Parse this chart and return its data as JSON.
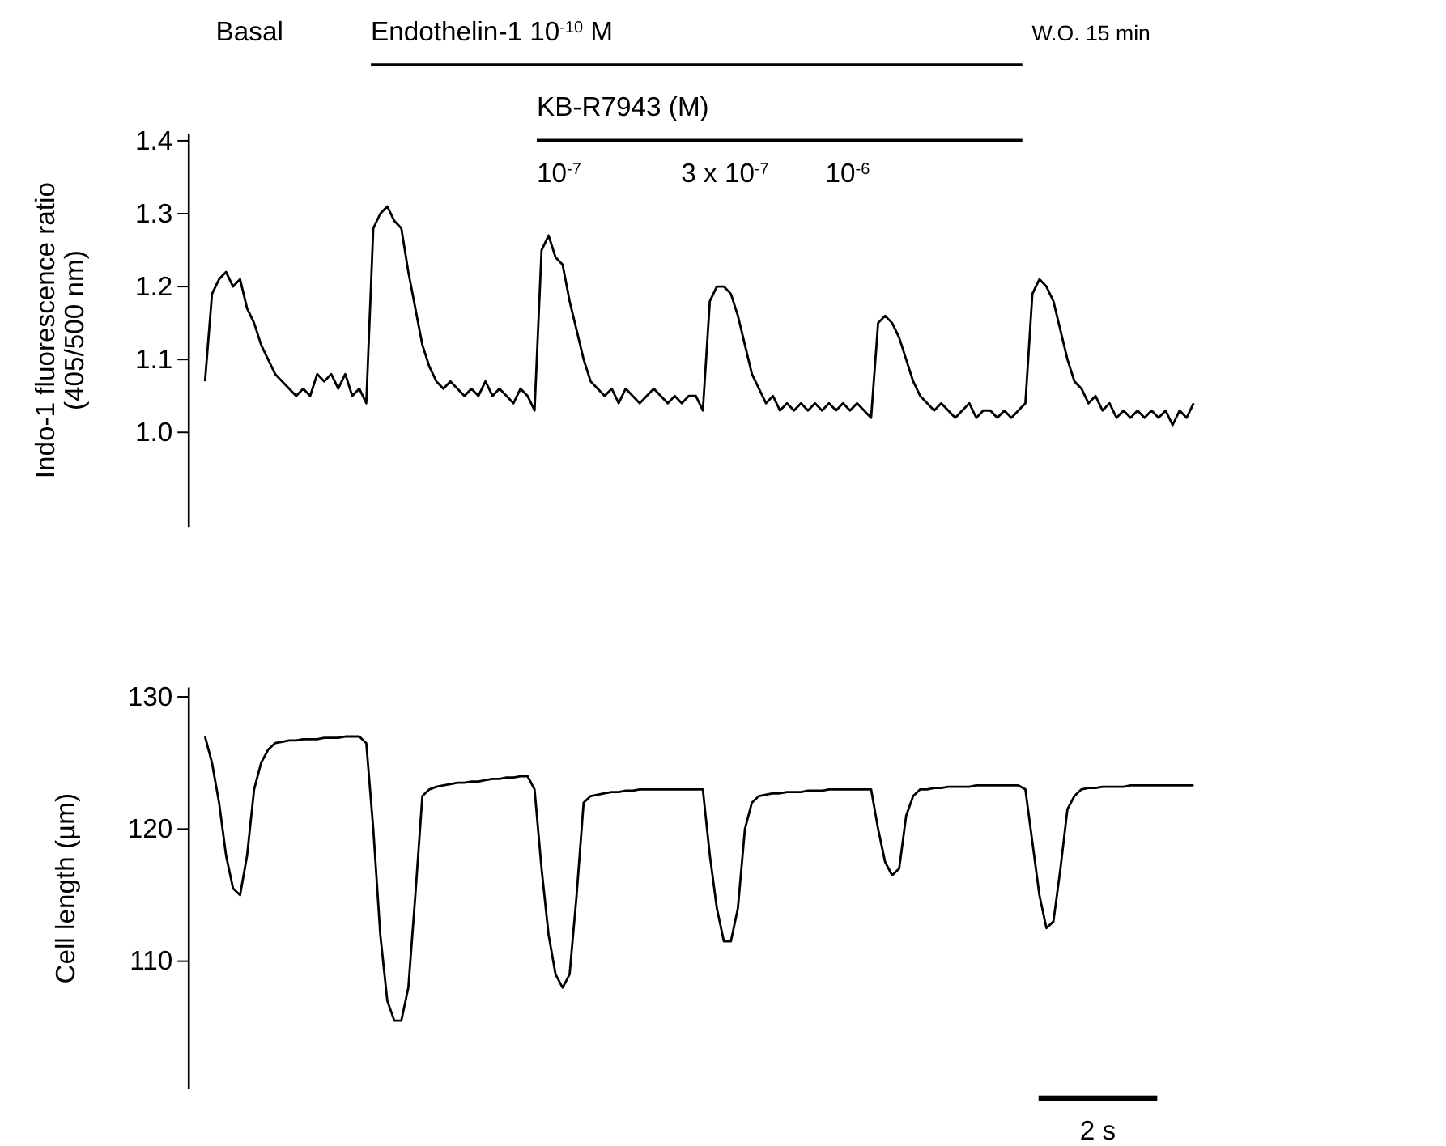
{
  "chart_data": [
    {
      "type": "line",
      "ylabel": "Indo-1 fluorescence ratio\n(405/500 nm)",
      "ylim": [
        0.87,
        1.41
      ],
      "yticks": [
        {
          "value": 1.0,
          "label": "1.0"
        },
        {
          "value": 1.1,
          "label": "1.1"
        },
        {
          "value": 1.2,
          "label": "1.2"
        },
        {
          "value": 1.3,
          "label": "1.3"
        },
        {
          "value": 1.4,
          "label": "1.4"
        }
      ],
      "tick_labels": "y",
      "categories": [
        null,
        null,
        null,
        null,
        null,
        null,
        null,
        null,
        null,
        null,
        null,
        null,
        null,
        null,
        null,
        null,
        null,
        null,
        null,
        null,
        null,
        null,
        null,
        null,
        null,
        null,
        null,
        null,
        null,
        null,
        null,
        null,
        null,
        null,
        null,
        null,
        null,
        null,
        null,
        null,
        null,
        null,
        null,
        null,
        null,
        null,
        null,
        null,
        null,
        null,
        null,
        null,
        null,
        null,
        null,
        null,
        null,
        null,
        null,
        null,
        null,
        null,
        null,
        null,
        null,
        null,
        null,
        null,
        null,
        null,
        null,
        null,
        null,
        null,
        null,
        null,
        null,
        null,
        null,
        null,
        null,
        null,
        null,
        null,
        null,
        null,
        null,
        null,
        null,
        null,
        null,
        null,
        null,
        null,
        null,
        null,
        null,
        null,
        null,
        null,
        null,
        null,
        null,
        null,
        null,
        null,
        null,
        null,
        null,
        null,
        null,
        null,
        null,
        null,
        null,
        null,
        null,
        null,
        null,
        null,
        null,
        null,
        null,
        null,
        null,
        null,
        null,
        null,
        null,
        null,
        null,
        null,
        null,
        null,
        null,
        null,
        null,
        null,
        null,
        null,
        null,
        null
      ],
      "annotations": [
        "Basal",
        "Endothelin-1 10$^{-10}$ M",
        "W.O. 15 min",
        "KB-R7943 (M)",
        "10$^{-7}$",
        "3 x 10$^{-7}$",
        "10$^{-6}$"
      ],
      "series": [
        {
          "color": "#000000",
          "values": [
            1.07,
            1.19,
            1.21,
            1.22,
            1.2,
            1.21,
            1.17,
            1.15,
            1.12,
            1.1,
            1.08,
            1.07,
            1.06,
            1.05,
            1.06,
            1.05,
            1.08,
            1.07,
            1.08,
            1.06,
            1.08,
            1.05,
            1.06,
            1.04,
            1.28,
            1.3,
            1.31,
            1.29,
            1.28,
            1.22,
            1.17,
            1.12,
            1.09,
            1.07,
            1.06,
            1.07,
            1.06,
            1.05,
            1.06,
            1.05,
            1.07,
            1.05,
            1.06,
            1.05,
            1.04,
            1.06,
            1.05,
            1.03,
            1.25,
            1.27,
            1.24,
            1.23,
            1.18,
            1.14,
            1.1,
            1.07,
            1.06,
            1.05,
            1.06,
            1.04,
            1.06,
            1.05,
            1.04,
            1.05,
            1.06,
            1.05,
            1.04,
            1.05,
            1.04,
            1.05,
            1.05,
            1.03,
            1.18,
            1.2,
            1.2,
            1.19,
            1.16,
            1.12,
            1.08,
            1.06,
            1.04,
            1.05,
            1.03,
            1.04,
            1.03,
            1.04,
            1.03,
            1.04,
            1.03,
            1.04,
            1.03,
            1.04,
            1.03,
            1.04,
            1.03,
            1.02,
            1.15,
            1.16,
            1.15,
            1.13,
            1.1,
            1.07,
            1.05,
            1.04,
            1.03,
            1.04,
            1.03,
            1.02,
            1.03,
            1.04,
            1.02,
            1.03,
            1.03,
            1.02,
            1.03,
            1.02,
            1.03,
            1.04,
            1.19,
            1.21,
            1.2,
            1.18,
            1.14,
            1.1,
            1.07,
            1.06,
            1.04,
            1.05,
            1.03,
            1.04,
            1.02,
            1.03,
            1.02,
            1.03,
            1.02,
            1.03,
            1.02,
            1.03,
            1.01,
            1.03,
            1.02,
            1.04
          ]
        }
      ]
    },
    {
      "type": "line",
      "ylabel": "Cell length (µm)",
      "ylim": [
        100.3,
        130.7
      ],
      "yticks": [
        110,
        120,
        130
      ],
      "tick_labels": "y",
      "categories": [
        null,
        null,
        null,
        null,
        null,
        null,
        null,
        null,
        null,
        null,
        null,
        null,
        null,
        null,
        null,
        null,
        null,
        null,
        null,
        null,
        null,
        null,
        null,
        null,
        null,
        null,
        null,
        null,
        null,
        null,
        null,
        null,
        null,
        null,
        null,
        null,
        null,
        null,
        null,
        null,
        null,
        null,
        null,
        null,
        null,
        null,
        null,
        null,
        null,
        null,
        null,
        null,
        null,
        null,
        null,
        null,
        null,
        null,
        null,
        null,
        null,
        null,
        null,
        null,
        null,
        null,
        null,
        null,
        null,
        null,
        null,
        null,
        null,
        null,
        null,
        null,
        null,
        null,
        null,
        null,
        null,
        null,
        null,
        null,
        null,
        null,
        null,
        null,
        null,
        null,
        null,
        null,
        null,
        null,
        null,
        null,
        null,
        null,
        null,
        null,
        null,
        null,
        null,
        null,
        null,
        null,
        null,
        null,
        null,
        null,
        null,
        null,
        null,
        null,
        null,
        null,
        null,
        null,
        null,
        null,
        null,
        null,
        null,
        null,
        null,
        null,
        null,
        null,
        null,
        null,
        null,
        null,
        null,
        null,
        null,
        null,
        null,
        null,
        null,
        null,
        null,
        null
      ],
      "annotations": [
        "2 s"
      ],
      "series": [
        {
          "color": "#000000",
          "values": [
            127,
            125,
            122,
            118,
            115.5,
            115,
            118,
            123,
            125,
            126,
            126.5,
            126.6,
            126.7,
            126.7,
            126.8,
            126.8,
            126.8,
            126.9,
            126.9,
            126.9,
            127,
            127,
            127,
            126.5,
            120,
            112,
            107,
            105.5,
            105.5,
            108,
            115,
            122.5,
            123,
            123.2,
            123.3,
            123.4,
            123.5,
            123.5,
            123.6,
            123.6,
            123.7,
            123.8,
            123.8,
            123.9,
            123.9,
            124,
            124,
            123,
            117,
            112,
            109,
            108,
            109,
            115,
            122,
            122.5,
            122.6,
            122.7,
            122.8,
            122.8,
            122.9,
            122.9,
            123,
            123,
            123,
            123,
            123,
            123,
            123,
            123,
            123,
            123,
            118,
            114,
            111.5,
            111.5,
            114,
            120,
            122,
            122.5,
            122.6,
            122.7,
            122.7,
            122.8,
            122.8,
            122.8,
            122.9,
            122.9,
            122.9,
            123,
            123,
            123,
            123,
            123,
            123,
            123,
            120,
            117.5,
            116.5,
            117,
            121,
            122.5,
            123,
            123,
            123.1,
            123.1,
            123.2,
            123.2,
            123.2,
            123.2,
            123.3,
            123.3,
            123.3,
            123.3,
            123.3,
            123.3,
            123.3,
            123,
            119,
            115,
            112.5,
            113,
            117,
            121.5,
            122.5,
            123,
            123.1,
            123.1,
            123.2,
            123.2,
            123.2,
            123.2,
            123.3,
            123.3,
            123.3,
            123.3,
            123.3,
            123.3,
            123.3,
            123.3,
            123.3,
            123.3
          ]
        }
      ]
    }
  ]
}
